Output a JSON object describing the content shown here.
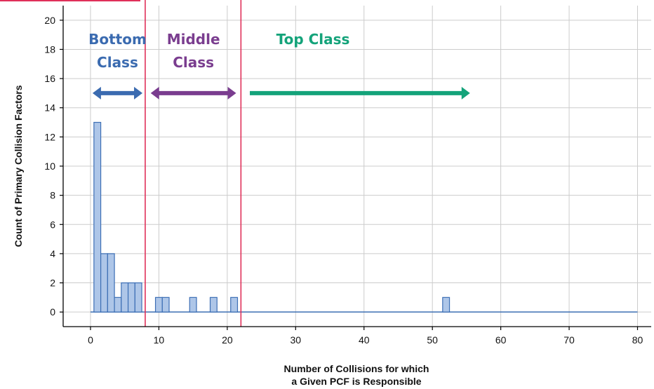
{
  "chart_data": {
    "type": "bar",
    "title": "",
    "xlabel_lines": [
      "Number of Collisions for which",
      "a Given PCF is Responsible"
    ],
    "ylabel": "Count of Primary Collision Factors",
    "xlim": [
      -4,
      82
    ],
    "ylim": [
      -1,
      21
    ],
    "x_ticks": [
      0,
      10,
      20,
      30,
      40,
      50,
      60,
      70,
      80
    ],
    "y_ticks": [
      0,
      2,
      4,
      6,
      8,
      10,
      12,
      14,
      16,
      18,
      20
    ],
    "bin_width": 1,
    "baseline": [
      0,
      80
    ],
    "bins": [
      {
        "x": 1,
        "count": 13
      },
      {
        "x": 2,
        "count": 4
      },
      {
        "x": 3,
        "count": 4
      },
      {
        "x": 4,
        "count": 1
      },
      {
        "x": 5,
        "count": 2
      },
      {
        "x": 6,
        "count": 2
      },
      {
        "x": 7,
        "count": 2
      },
      {
        "x": 10,
        "count": 1
      },
      {
        "x": 11,
        "count": 1
      },
      {
        "x": 15,
        "count": 1
      },
      {
        "x": 18,
        "count": 1
      },
      {
        "x": 21,
        "count": 1
      },
      {
        "x": 52,
        "count": 1
      }
    ],
    "thresholds": [
      8,
      22
    ],
    "classes": [
      {
        "lines": [
          "Bottom",
          "Class"
        ],
        "color": "#3b6bb0",
        "from": 0.3,
        "to": 7.6
      },
      {
        "lines": [
          "Middle",
          "Class"
        ],
        "color": "#7a3d8f",
        "from": 8.8,
        "to": 21.3
      },
      {
        "lines": [
          "Top Class"
        ],
        "color": "#14a37a",
        "from": 23.3,
        "to": 55.5
      }
    ],
    "colors": {
      "bar_fill": "#aec6e8",
      "bar_stroke": "#3d6fb5",
      "threshold": "#e0305a",
      "grid": "#cccccc",
      "axis": "#000000"
    },
    "grid": true
  }
}
